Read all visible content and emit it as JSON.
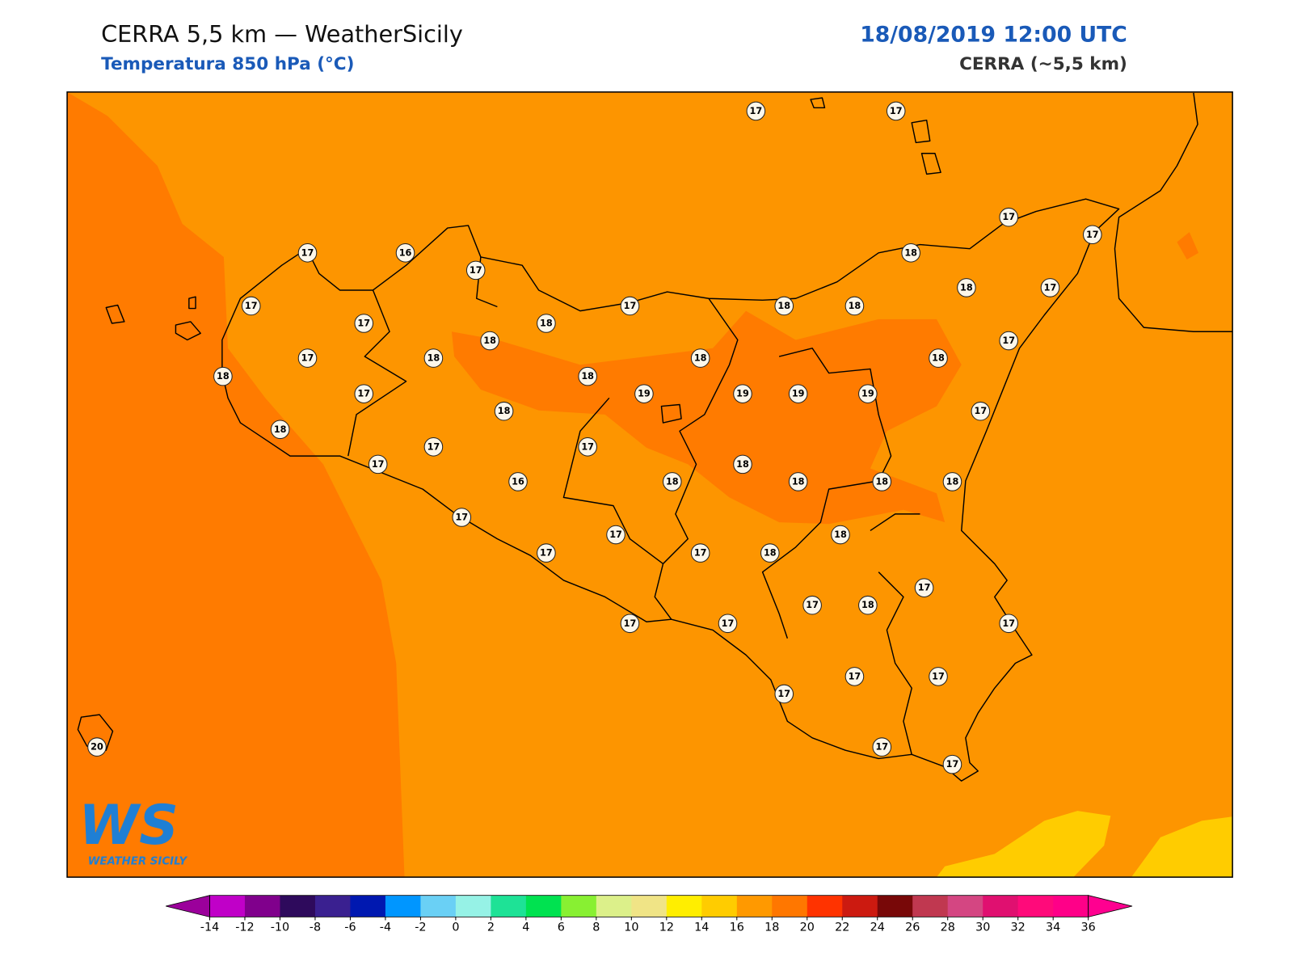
{
  "header": {
    "title": "CERRA 5,5 km — WeatherSicily",
    "subtitle": "Temperatura 850 hPa (°C)",
    "date": "18/08/2019 12:00 UTC",
    "source": "CERRA (~5,5 km)"
  },
  "map": {
    "stations": [
      17,
      17,
      17,
      17,
      17,
      16,
      17,
      18,
      18,
      17,
      17,
      17,
      18,
      17,
      18,
      18,
      18,
      17,
      17,
      18,
      18,
      18,
      18,
      18,
      17,
      19,
      19,
      19,
      19,
      18,
      17,
      18,
      17,
      17,
      17,
      16,
      18,
      18,
      18,
      18,
      18,
      17,
      18,
      17,
      17,
      17,
      18,
      17,
      17,
      18,
      17,
      17,
      17,
      17,
      17,
      17,
      17,
      17,
      20
    ]
  },
  "logo": {
    "mark": "WS",
    "name": "WEATHER SICILY"
  },
  "colorbar": {
    "ticks": [
      -14,
      -12,
      -10,
      -8,
      -6,
      -4,
      -2,
      0,
      2,
      4,
      6,
      8,
      10,
      12,
      14,
      16,
      18,
      20,
      22,
      24,
      26,
      28,
      30,
      32,
      34,
      36
    ],
    "colors": [
      "#c000c8",
      "#80008c",
      "#2e0a5c",
      "#3a2090",
      "#0018b0",
      "#0096ff",
      "#6ad0f5",
      "#96f2e6",
      "#1ee296",
      "#00e250",
      "#88f032",
      "#dcf08a",
      "#f0e486",
      "#ffee00",
      "#ffcc00",
      "#ff9900",
      "#ff7700",
      "#ff3300",
      "#cc1a10",
      "#780808",
      "#c03850",
      "#d44682",
      "#e01070",
      "#ff0a7a",
      "#ff0088"
    ],
    "under_color": "#9b009b",
    "over_color": "#ff0090"
  }
}
